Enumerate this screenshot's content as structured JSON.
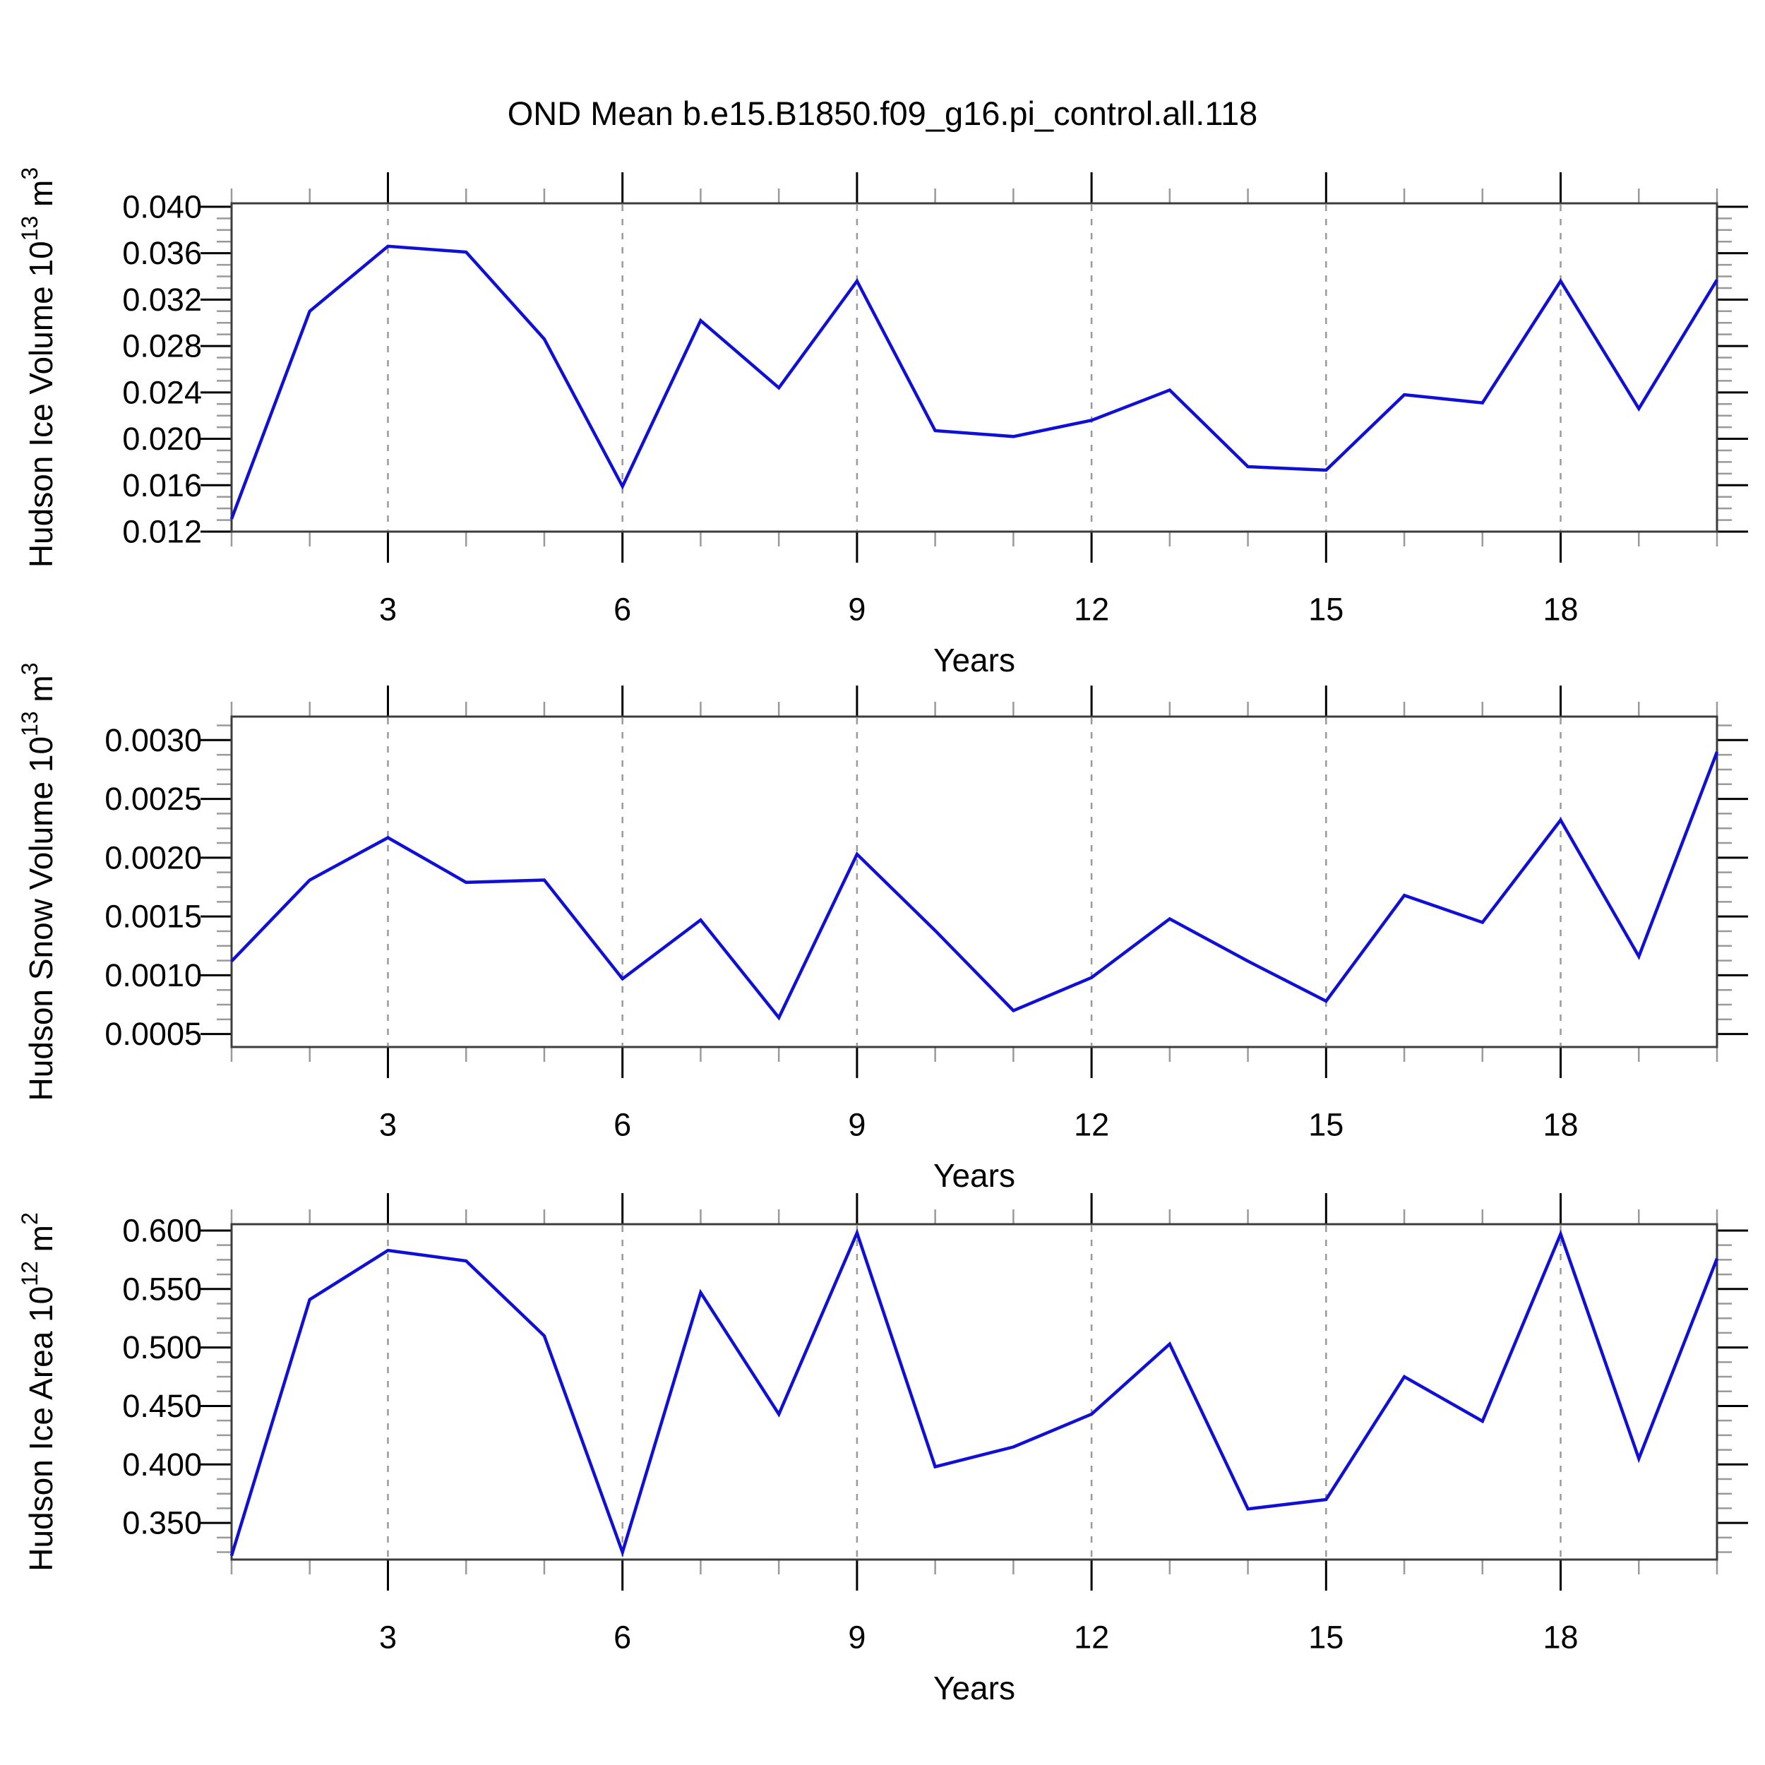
{
  "title": "OND Mean b.e15.B1850.f09_g16.pi_control.all.118",
  "colors": {
    "line": "#0f0fd8",
    "frame": "#3c3c3c",
    "grid": "#999999",
    "tick_major": "#000000",
    "tick_minor": "#9a9a9a",
    "text": "#000000",
    "background": "#ffffff"
  },
  "chart_data": [
    {
      "type": "line",
      "panel": "hudson-ice-volume",
      "ylabel": "Hudson Ice Volume 10¹³ m³",
      "ylabel_parts": [
        [
          "t",
          "Hudson Ice Volume 10"
        ],
        [
          "sup",
          "13"
        ],
        [
          "t",
          " m"
        ],
        [
          "sup",
          "3"
        ]
      ],
      "xlabel": "Years",
      "x": [
        1,
        2,
        3,
        4,
        5,
        6,
        7,
        8,
        9,
        10,
        11,
        12,
        13,
        14,
        15,
        16,
        17,
        18,
        19,
        20
      ],
      "values": [
        0.0131,
        0.031,
        0.0366,
        0.0361,
        0.0286,
        0.0159,
        0.0302,
        0.0244,
        0.0336,
        0.0207,
        0.0202,
        0.0216,
        0.0242,
        0.0176,
        0.0173,
        0.0238,
        0.0231,
        0.0336,
        0.0226,
        0.0337
      ],
      "xlim": [
        1,
        20
      ],
      "y_axis_range": [
        0.012,
        0.0403
      ],
      "yticks": [
        0.012,
        0.016,
        0.02,
        0.024,
        0.028,
        0.032,
        0.036,
        0.04
      ],
      "ytick_labels": [
        "0.012",
        "0.016",
        "0.020",
        "0.024",
        "0.028",
        "0.032",
        "0.036",
        "0.040"
      ],
      "y_minor_step": 0.001,
      "xticks": [
        3,
        6,
        9,
        12,
        15,
        18
      ],
      "xtick_labels": [
        "3",
        "6",
        "9",
        "12",
        "15",
        "18"
      ],
      "x_minor_step": 1,
      "grid": "vertical-dashed-at-x-majors",
      "legend": "none"
    },
    {
      "type": "line",
      "panel": "hudson-snow-volume",
      "ylabel": "Hudson Snow Volume 10¹³ m³",
      "ylabel_parts": [
        [
          "t",
          "Hudson Snow Volume 10"
        ],
        [
          "sup",
          "13"
        ],
        [
          "t",
          " m"
        ],
        [
          "sup",
          "3"
        ]
      ],
      "xlabel": "Years",
      "x": [
        1,
        2,
        3,
        4,
        5,
        6,
        7,
        8,
        9,
        10,
        11,
        12,
        13,
        14,
        15,
        16,
        17,
        18,
        19,
        20
      ],
      "values": [
        0.00112,
        0.00181,
        0.00217,
        0.00179,
        0.00181,
        0.00097,
        0.00147,
        0.00064,
        0.00203,
        0.00138,
        0.0007,
        0.00098,
        0.00148,
        0.00112,
        0.00078,
        0.00168,
        0.00145,
        0.00232,
        0.00116,
        0.0029
      ],
      "xlim": [
        1,
        20
      ],
      "y_axis_range": [
        0.00039,
        0.0032
      ],
      "yticks": [
        0.0005,
        0.001,
        0.0015,
        0.002,
        0.0025,
        0.003
      ],
      "ytick_labels": [
        "0.0005",
        "0.0010",
        "0.0015",
        "0.0020",
        "0.0025",
        "0.0030"
      ],
      "y_minor_step": 0.000125,
      "xticks": [
        3,
        6,
        9,
        12,
        15,
        18
      ],
      "xtick_labels": [
        "3",
        "6",
        "9",
        "12",
        "15",
        "18"
      ],
      "x_minor_step": 1,
      "grid": "vertical-dashed-at-x-majors",
      "legend": "none"
    },
    {
      "type": "line",
      "panel": "hudson-ice-area",
      "ylabel": "Hudson Ice Area 10¹² m²",
      "ylabel_parts": [
        [
          "t",
          "Hudson Ice Area 10"
        ],
        [
          "sup",
          "12"
        ],
        [
          "t",
          " m"
        ],
        [
          "sup",
          "2"
        ]
      ],
      "xlabel": "Years",
      "x": [
        1,
        2,
        3,
        4,
        5,
        6,
        7,
        8,
        9,
        10,
        11,
        12,
        13,
        14,
        15,
        16,
        17,
        18,
        19,
        20
      ],
      "values": [
        0.322,
        0.541,
        0.583,
        0.574,
        0.51,
        0.325,
        0.547,
        0.443,
        0.598,
        0.398,
        0.415,
        0.443,
        0.503,
        0.362,
        0.37,
        0.475,
        0.437,
        0.597,
        0.405,
        0.576
      ],
      "xlim": [
        1,
        20
      ],
      "y_axis_range": [
        0.3187,
        0.6054
      ],
      "yticks": [
        0.35,
        0.4,
        0.45,
        0.5,
        0.55,
        0.6
      ],
      "ytick_labels": [
        "0.350",
        "0.400",
        "0.450",
        "0.500",
        "0.550",
        "0.600"
      ],
      "y_minor_step": 0.0125,
      "xticks": [
        3,
        6,
        9,
        12,
        15,
        18
      ],
      "xtick_labels": [
        "3",
        "6",
        "9",
        "12",
        "15",
        "18"
      ],
      "x_minor_step": 1,
      "grid": "vertical-dashed-at-x-majors",
      "legend": "none"
    }
  ]
}
